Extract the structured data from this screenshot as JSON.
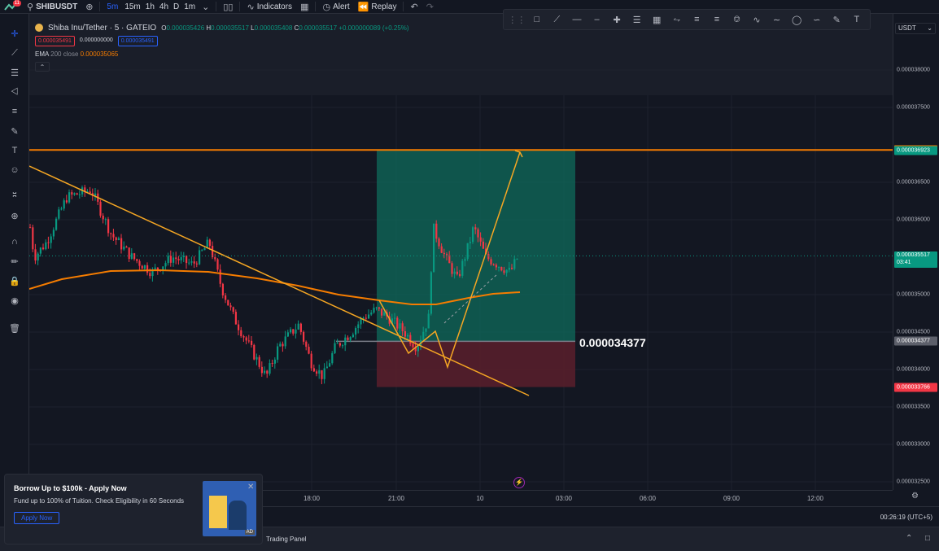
{
  "app": {
    "symbol": "SHIBUSDT",
    "notification_count": "11"
  },
  "topbar": {
    "intervals": [
      "5m",
      "15m",
      "1h",
      "4h",
      "D",
      "1m"
    ],
    "active_interval": "5m",
    "indicators_label": "Indicators",
    "alert_label": "Alert",
    "replay_label": "Replay"
  },
  "legend": {
    "title": "Shiba Inu/Tether · 5 · GATEIO",
    "open_label": "O",
    "open": "0.000035426",
    "high_label": "H",
    "high": "0.000035517",
    "low_label": "L",
    "low": "0.000035408",
    "close_label": "C",
    "close": "0.000035517",
    "change": "+0.000000089 (+0.25%)",
    "sell_price": "0.000035491",
    "spread": "0.000000000",
    "buy_price": "0.000035491",
    "ema_name": "EMA",
    "ema_params": "200 close",
    "ema_value": "0.000035065",
    "collapse_icon": "chevron-up-icon"
  },
  "chart_data": {
    "type": "candlestick",
    "x_ticks": [
      "18:00",
      "21:00",
      "10",
      "03:00",
      "06:00",
      "09:00",
      "12:00"
    ],
    "y_ticks": [
      "0.000038000",
      "0.000037500",
      "0.000036500",
      "0.000036000",
      "0.000035000",
      "0.000034500",
      "0.000034000",
      "0.000033500",
      "0.000033000",
      "0.000032500"
    ],
    "ylim": [
      3.25e-05,
      3.82e-05
    ],
    "horizontal_lines": [
      {
        "value": 3.6932e-05,
        "color": "#f57c00"
      }
    ],
    "position_tool": {
      "entry": 3.4377e-05,
      "target": 3.6923e-05,
      "stop": 3.3766e-05,
      "entry_label": "0.000034377",
      "profit_color": "#0f6b5b",
      "loss_color": "#5a1f2b"
    },
    "price_tags": [
      {
        "value": "0.000036932",
        "color": "#f57c00"
      },
      {
        "value": "0.000036923",
        "color": "#089981"
      },
      {
        "value": "0.000035517",
        "color": "#089981",
        "countdown": "03:41"
      },
      {
        "value": "0.000034377",
        "color": "#5d606b"
      },
      {
        "value": "0.000033766",
        "color": "#f23645"
      }
    ],
    "currency": "USDT",
    "ema_color": "#f57c00",
    "up_color": "#089981",
    "down_color": "#f23645"
  },
  "status": {
    "clock": "00:26:19 (UTC+5)",
    "panel_label": "Trading Panel"
  },
  "ad": {
    "title": "Borrow Up to $100k - Apply Now",
    "text": "Fund up to 100% of Tuition. Check Eligibility in 60 Seconds",
    "button": "Apply Now",
    "badge": "AD"
  }
}
